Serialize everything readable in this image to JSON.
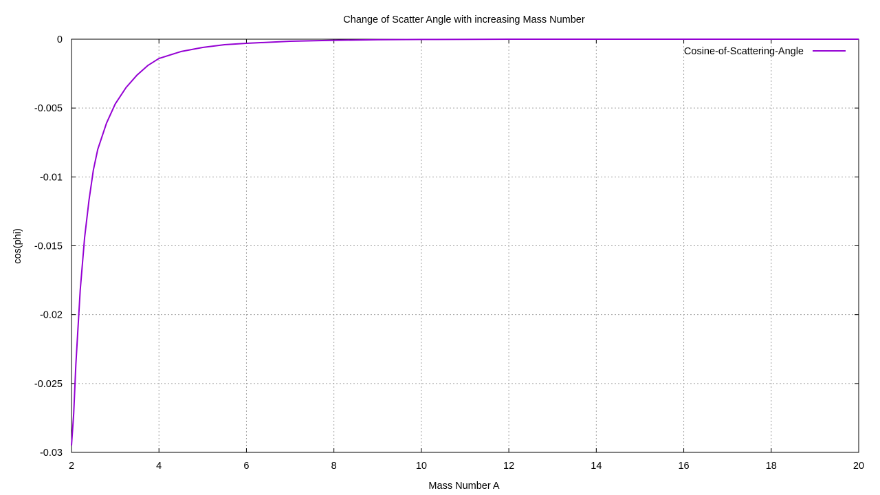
{
  "chart_data": {
    "type": "line",
    "title": "Change of Scatter Angle with increasing Mass Number",
    "xlabel": "Mass Number A",
    "ylabel": "cos(phi)",
    "xlim": [
      2,
      20
    ],
    "ylim": [
      -0.03,
      0
    ],
    "x_ticks": [
      2,
      4,
      6,
      8,
      10,
      12,
      14,
      16,
      18,
      20
    ],
    "x_tick_labels": [
      "2",
      "4",
      "6",
      "8",
      "10",
      "12",
      "14",
      "16",
      "18",
      "20"
    ],
    "y_ticks": [
      0,
      -0.005,
      -0.01,
      -0.015,
      -0.02,
      -0.025,
      -0.03
    ],
    "y_tick_labels": [
      "0",
      "-0.005",
      "-0.01",
      "-0.015",
      "-0.02",
      "-0.025",
      "-0.03"
    ],
    "grid": true,
    "legend_position": "top-right",
    "series": [
      {
        "name": "Cosine-of-Scattering-Angle",
        "color": "#9400d3",
        "x": [
          2.0,
          2.05,
          2.1,
          2.2,
          2.3,
          2.4,
          2.5,
          2.6,
          2.8,
          3.0,
          3.25,
          3.5,
          3.75,
          4.0,
          4.5,
          5.0,
          5.5,
          6.0,
          7.0,
          8.0,
          9.0,
          10.0,
          11.0,
          12.0,
          14.0,
          16.0,
          18.0,
          20.0
        ],
        "y": [
          -0.0295,
          -0.0272,
          -0.0236,
          -0.0182,
          -0.0144,
          -0.0117,
          -0.0095,
          -0.008,
          -0.0061,
          -0.0047,
          -0.0035,
          -0.0026,
          -0.0019,
          -0.0014,
          -0.0009,
          -0.0006,
          -0.0004,
          -0.0003,
          -0.00015,
          -8e-05,
          -4e-05,
          -2e-05,
          -1e-05,
          0,
          0,
          0,
          0,
          0
        ]
      }
    ]
  }
}
